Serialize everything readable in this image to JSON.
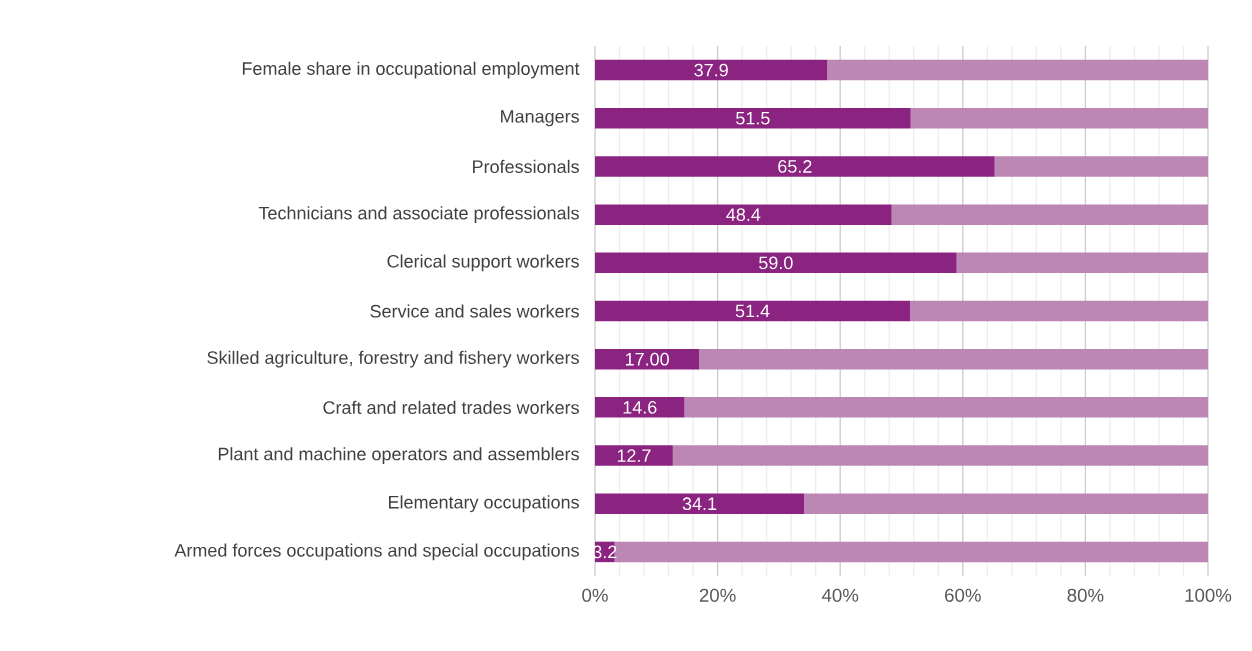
{
  "chart_data": {
    "type": "bar",
    "orientation": "horizontal",
    "stacked": true,
    "categories": [
      "Female share in occupational employment",
      "Managers",
      "Professionals",
      "Technicians and associate professionals",
      "Clerical support workers",
      "Service and sales workers",
      "Skilled agriculture, forestry and fishery workers",
      "Craft and related trades workers",
      "Plant and machine operators and assemblers",
      "Elementary occupations",
      "Armed forces occupations and special occupations"
    ],
    "series": [
      {
        "color": "#8b2480",
        "values": [
          37.9,
          51.5,
          65.2,
          48.4,
          59.0,
          51.4,
          17.0,
          14.6,
          12.7,
          34.1,
          3.2
        ],
        "value_labels": [
          "37.9",
          "51.5",
          "65.2",
          "48.4",
          "59.0",
          "51.4",
          "17.00",
          "14.6",
          "12.7",
          "34.1",
          "3.2"
        ]
      },
      {
        "color": "#bc87b4",
        "values": [
          62.1,
          48.5,
          34.8,
          51.6,
          41.0,
          48.6,
          83.0,
          85.4,
          87.3,
          65.9,
          96.8
        ]
      }
    ],
    "xlim": [
      0,
      100
    ],
    "xticks": [
      {
        "value": 0,
        "label": "0%"
      },
      {
        "value": 20,
        "label": "20%"
      },
      {
        "value": 40,
        "label": "40%"
      },
      {
        "value": 60,
        "label": "60%"
      },
      {
        "value": 80,
        "label": "80%"
      },
      {
        "value": 100,
        "label": "100%"
      }
    ],
    "grid": "x"
  }
}
